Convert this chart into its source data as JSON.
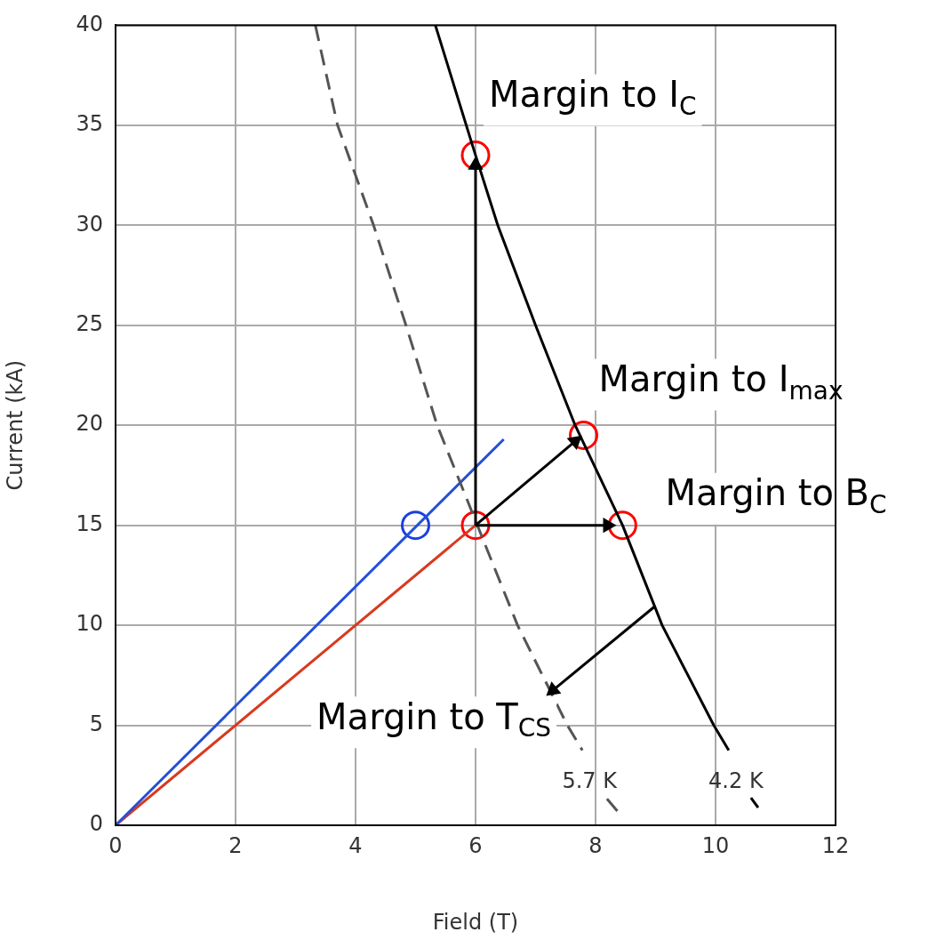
{
  "chart_data": {
    "type": "line",
    "xlabel": "Field (T)",
    "ylabel": "Current (kA)",
    "xlim": [
      0,
      12
    ],
    "xticks": [
      0,
      2,
      4,
      6,
      8,
      10,
      12
    ],
    "ylim": [
      0,
      40
    ],
    "yticks": [
      0,
      5,
      10,
      15,
      20,
      25,
      30,
      35,
      40
    ],
    "grid": true,
    "legend": false,
    "marker": "none",
    "line_style": "solid",
    "series": [
      {
        "name": "4.2 K",
        "color": "#000000",
        "x": [
          5.33,
          6,
          6.37,
          7,
          7.66,
          8.45,
          9.11,
          9.97,
          10.22,
          10.4,
          10.59,
          10.71
        ],
        "values": [
          40,
          33.5,
          30,
          25,
          20,
          15,
          10,
          5,
          3.75,
          null,
          1.37,
          0.88
        ]
      },
      {
        "name": "5.7 K",
        "color": "#555555",
        "line_style": "dashed",
        "x": [
          3.33,
          3.7,
          4.3,
          4.84,
          5.36,
          6.03,
          6.7,
          7.53,
          7.78,
          8.0,
          8.19,
          8.44
        ],
        "values": [
          40,
          35,
          30,
          25,
          20,
          15,
          10,
          5,
          3.75,
          null,
          1.32,
          0.44
        ]
      },
      {
        "color": "#2350d8",
        "x": [
          0,
          6.47
        ],
        "values": [
          0,
          19.3
        ]
      },
      {
        "color": "#d9391e",
        "x": [
          0,
          6
        ],
        "values": [
          0,
          15
        ]
      },
      {
        "type": "scatter",
        "marker": "circle",
        "color": "#ff0000",
        "x": [
          6,
          7.8,
          8.45,
          6
        ],
        "values": [
          33.5,
          19.5,
          15,
          15
        ]
      },
      {
        "type": "scatter",
        "marker": "circle",
        "color": "#1a3fe0",
        "x": [
          5
        ],
        "values": [
          15
        ]
      },
      {
        "color": "#000000",
        "marker": "triangle",
        "x": [
          6,
          6
        ],
        "values": [
          15,
          33
        ]
      },
      {
        "color": "#000000",
        "marker": "triangle",
        "x": [
          6,
          7.66
        ],
        "values": [
          15,
          19.2
        ]
      },
      {
        "color": "#000000",
        "marker": "triangle",
        "x": [
          6,
          8.2
        ],
        "values": [
          15,
          15
        ]
      },
      {
        "color": "#000000",
        "marker": "triangle",
        "x": [
          8.99,
          7.29
        ],
        "values": [
          10.95,
          6.75
        ]
      }
    ],
    "annotations": [
      {
        "text": "Margin to I$_{C}$",
        "x": 6,
        "y": 33.5
      },
      {
        "text": "Margin to I$_{max}$",
        "x": 7.8,
        "y": 19.5
      },
      {
        "text": "Margin to B$_{C}$",
        "x": 8.45,
        "y": 15
      },
      {
        "text": "Margin to T$_{CS}$",
        "x": 7.29,
        "y": 6.75
      }
    ]
  }
}
